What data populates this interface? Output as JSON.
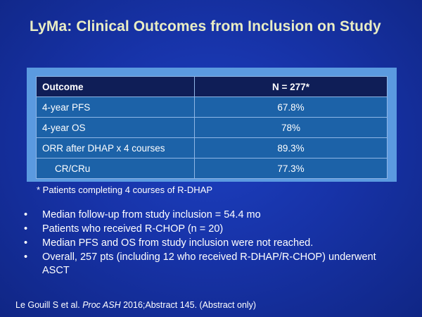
{
  "slide": {
    "title": "LyMa: Clinical Outcomes from Inclusion on Study",
    "table": {
      "headers": [
        "Outcome",
        "N = 277*"
      ],
      "rows": [
        {
          "label": "4-year PFS",
          "value": "67.8%"
        },
        {
          "label": "4-year OS",
          "value": "78%"
        },
        {
          "label": "ORR after DHAP x 4 courses",
          "value": "89.3%"
        },
        {
          "label": "CR/CRu",
          "value": "77.3%"
        }
      ]
    },
    "footnote": "* Patients completing 4 courses of R-DHAP",
    "bullet_marker": "•",
    "bullets": [
      "Median follow-up from study inclusion = 54.4 mo",
      "Patients who received R-CHOP (n = 20)",
      "Median PFS and OS from study inclusion were not reached.",
      "Overall, 257 pts (including 12 who received R-DHAP/R-CHOP) underwent ASCT"
    ],
    "citation": {
      "authors": "Le Gouill S et al.",
      "journal": "Proc ASH",
      "rest": "2016;Abstract 145. (Abstract only)"
    },
    "colors": {
      "background": "#1733a8",
      "title": "#e9edc4",
      "table_frame": "#5b9ae0",
      "table_header": "#0f1e57",
      "table_cell": "#1c62a8"
    }
  }
}
